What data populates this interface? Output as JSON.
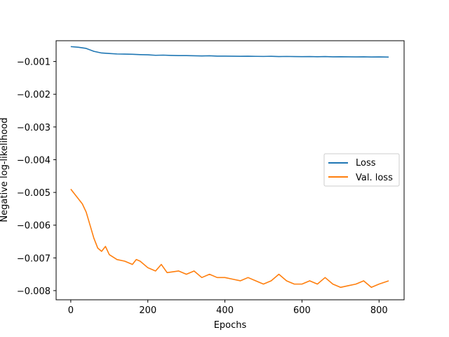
{
  "chart_data": {
    "type": "line",
    "title": "",
    "xlabel": "Epochs",
    "ylabel": "Negative log-likelihood",
    "xlim": [
      -38,
      865
    ],
    "ylim": [
      -0.00828,
      -0.000365
    ],
    "x_ticks": [
      0,
      200,
      400,
      600,
      800
    ],
    "x_tick_labels": [
      "0",
      "200",
      "400",
      "600",
      "800"
    ],
    "y_ticks": [
      -0.001,
      -0.002,
      -0.003,
      -0.004,
      -0.005,
      -0.006,
      -0.007,
      -0.008
    ],
    "y_tick_labels": [
      "−0.001",
      "−0.002",
      "−0.003",
      "−0.004",
      "−0.005",
      "−0.006",
      "−0.007",
      "−0.008"
    ],
    "grid": false,
    "legend_position": "center-right",
    "series": [
      {
        "name": "Loss",
        "color": "#1f77b4",
        "x": [
          0,
          20,
          40,
          60,
          80,
          100,
          120,
          140,
          160,
          180,
          200,
          220,
          240,
          260,
          280,
          300,
          320,
          340,
          360,
          380,
          400,
          420,
          440,
          460,
          480,
          500,
          520,
          540,
          560,
          580,
          600,
          620,
          640,
          660,
          680,
          700,
          720,
          740,
          760,
          780,
          800,
          825
        ],
        "y": [
          -0.000545,
          -0.000565,
          -0.0006,
          -0.00069,
          -0.00074,
          -0.000755,
          -0.00077,
          -0.000775,
          -0.00078,
          -0.00079,
          -0.000795,
          -0.00081,
          -0.000805,
          -0.000815,
          -0.00082,
          -0.00082,
          -0.000825,
          -0.00083,
          -0.000825,
          -0.000835,
          -0.000835,
          -0.000838,
          -0.00084,
          -0.000838,
          -0.000842,
          -0.000845,
          -0.00084,
          -0.000848,
          -0.000845,
          -0.00085,
          -0.000852,
          -0.000848,
          -0.000855,
          -0.00085,
          -0.000858,
          -0.000855,
          -0.000858,
          -0.00086,
          -0.000858,
          -0.000862,
          -0.00086,
          -0.000865
        ]
      },
      {
        "name": "Val. loss",
        "color": "#ff7f0e",
        "x": [
          0,
          10,
          20,
          30,
          40,
          50,
          60,
          70,
          80,
          90,
          100,
          120,
          140,
          160,
          170,
          180,
          200,
          220,
          235,
          250,
          280,
          300,
          320,
          340,
          360,
          380,
          400,
          420,
          440,
          460,
          480,
          500,
          520,
          540,
          560,
          580,
          600,
          620,
          640,
          660,
          680,
          700,
          720,
          740,
          760,
          780,
          800,
          825
        ],
        "y": [
          -0.0049,
          -0.00505,
          -0.0052,
          -0.00535,
          -0.0056,
          -0.006,
          -0.0064,
          -0.0067,
          -0.0068,
          -0.00665,
          -0.0069,
          -0.00705,
          -0.0071,
          -0.0072,
          -0.00705,
          -0.0071,
          -0.0073,
          -0.0074,
          -0.0072,
          -0.00745,
          -0.0074,
          -0.0075,
          -0.0074,
          -0.0076,
          -0.0075,
          -0.0076,
          -0.0076,
          -0.00765,
          -0.0077,
          -0.0076,
          -0.0077,
          -0.0078,
          -0.0077,
          -0.0075,
          -0.0077,
          -0.0078,
          -0.0078,
          -0.0077,
          -0.0078,
          -0.0076,
          -0.0078,
          -0.0079,
          -0.00785,
          -0.0078,
          -0.0077,
          -0.0079,
          -0.0078,
          -0.0077
        ]
      }
    ]
  }
}
